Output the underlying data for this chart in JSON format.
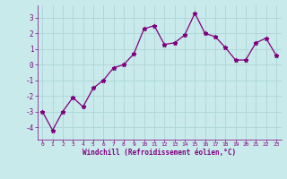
{
  "x": [
    0,
    1,
    2,
    3,
    4,
    5,
    6,
    7,
    8,
    9,
    10,
    11,
    12,
    13,
    14,
    15,
    16,
    17,
    18,
    19,
    20,
    21,
    22,
    23
  ],
  "y": [
    -3.0,
    -4.2,
    -3.0,
    -2.1,
    -2.7,
    -1.5,
    -1.0,
    -0.2,
    0.0,
    0.7,
    2.3,
    2.5,
    1.3,
    1.4,
    1.9,
    3.3,
    2.0,
    1.8,
    1.1,
    0.3,
    0.3,
    1.4,
    1.7,
    0.6
  ],
  "line_color": "#800080",
  "marker": "*",
  "bg_color": "#c8eaea",
  "grid_color": "#b0d8d8",
  "xlabel": "Windchill (Refroidissement éolien,°C)",
  "xlabel_color": "#800080",
  "tick_color": "#800080",
  "label_color": "#800080",
  "ylim": [
    -4.8,
    3.8
  ],
  "xlim": [
    -0.5,
    23.5
  ],
  "yticks": [
    -4,
    -3,
    -2,
    -1,
    0,
    1,
    2,
    3
  ],
  "xticks": [
    0,
    1,
    2,
    3,
    4,
    5,
    6,
    7,
    8,
    9,
    10,
    11,
    12,
    13,
    14,
    15,
    16,
    17,
    18,
    19,
    20,
    21,
    22,
    23
  ]
}
